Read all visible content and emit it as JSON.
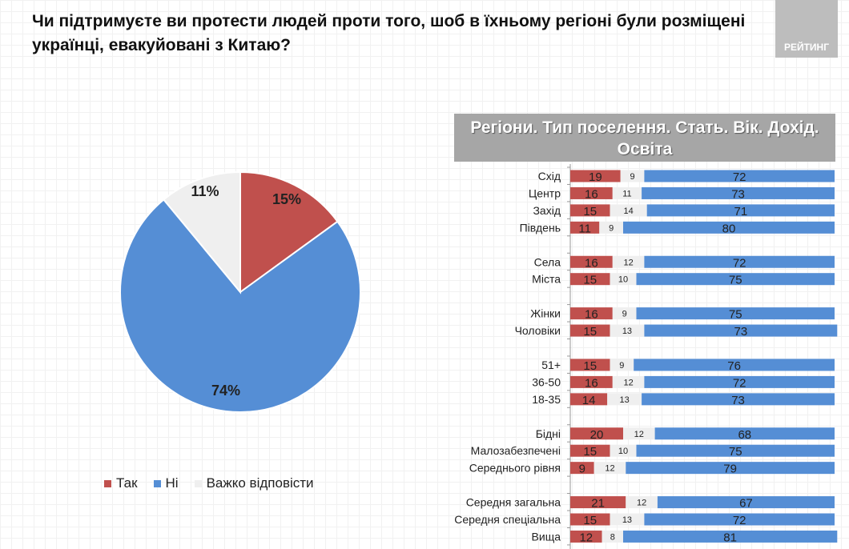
{
  "title": "Чи підтримуєте ви протести людей проти того, шоб в їхньому регіоні були розміщені українці, евакуйовані з Китаю?",
  "logo_text": "РЕЙТИНГ",
  "colors": {
    "yes": "#c0504d",
    "no": "#558ed5",
    "hard": "#efefef"
  },
  "chart_data": [
    {
      "type": "pie",
      "categories": [
        "Так",
        "Ні",
        "Важко відповісти"
      ],
      "values": [
        15,
        74,
        11
      ],
      "labels": [
        "15%",
        "74%",
        "11%"
      ],
      "legend_position": "bottom"
    },
    {
      "type": "bar",
      "stacked": true,
      "orientation": "horizontal",
      "title": "Регіони. Тип поселення. Стать. Вік. Дохід. Освіта",
      "xlim": [
        0,
        100
      ],
      "categories": [
        "Схід",
        "Центр",
        "Захід",
        "Південь",
        "Села",
        "Міста",
        "Жінки",
        "Чоловіки",
        "51+",
        "36-50",
        "18-35",
        "Бідні",
        "Малозабезпечені",
        "Середнього рівня",
        "Середня загальна",
        "Середня спеціальна",
        "Вища"
      ],
      "groups": [
        [
          0,
          1,
          2,
          3
        ],
        [
          4,
          5
        ],
        [
          6,
          7
        ],
        [
          8,
          9,
          10
        ],
        [
          11,
          12,
          13
        ],
        [
          14,
          15,
          16
        ]
      ],
      "series": [
        {
          "name": "Так",
          "values": [
            19,
            16,
            15,
            11,
            16,
            15,
            16,
            15,
            15,
            16,
            14,
            20,
            15,
            9,
            21,
            15,
            12
          ]
        },
        {
          "name": "Важко відповісти",
          "values": [
            9,
            11,
            14,
            9,
            12,
            10,
            9,
            13,
            9,
            12,
            13,
            12,
            10,
            12,
            12,
            13,
            8
          ]
        },
        {
          "name": "Ні",
          "values": [
            72,
            73,
            71,
            80,
            72,
            75,
            75,
            73,
            76,
            72,
            73,
            68,
            75,
            79,
            67,
            72,
            81
          ]
        }
      ]
    }
  ]
}
